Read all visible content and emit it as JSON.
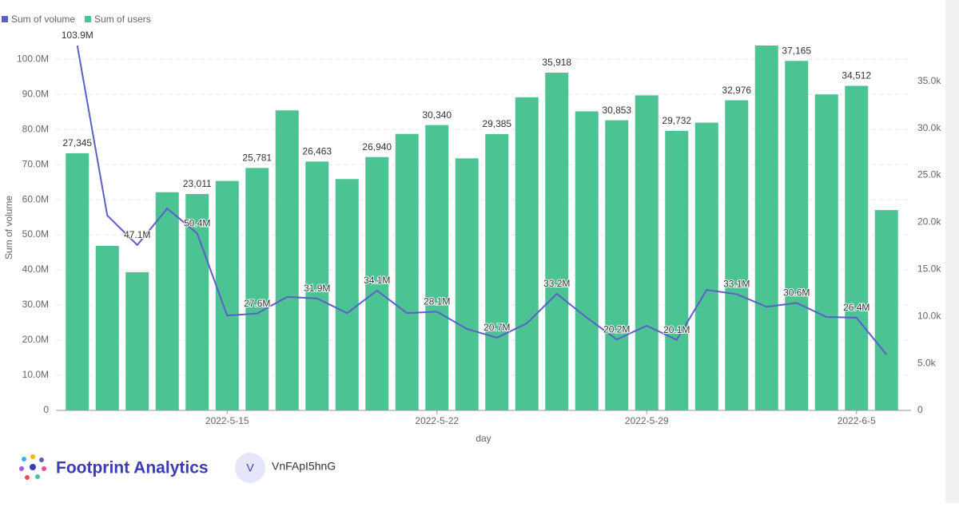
{
  "chart_data": {
    "type": "bar",
    "categories": [
      null,
      null,
      null,
      null,
      null,
      "2022-5-15",
      null,
      null,
      null,
      null,
      null,
      null,
      "2022-5-22",
      null,
      null,
      null,
      null,
      null,
      null,
      "2022-5-29",
      null,
      null,
      null,
      null,
      null,
      null,
      "2022-6-5",
      null
    ],
    "x_label": "day",
    "y_label": "Sum of volume",
    "ylim": [
      0,
      103900000
    ],
    "yticks": [
      0,
      {
        "value": 10000000,
        "label": "10.0M"
      },
      {
        "value": 20000000,
        "label": "20.0M"
      },
      {
        "value": 30000000,
        "label": "30.0M"
      },
      {
        "value": 40000000,
        "label": "40.0M"
      },
      {
        "value": 50000000,
        "label": "50.0M"
      },
      {
        "value": 60000000,
        "label": "60.0M"
      },
      {
        "value": 70000000,
        "label": "70.0M"
      },
      {
        "value": 80000000,
        "label": "80.0M"
      },
      {
        "value": 90000000,
        "label": "90.0M"
      },
      {
        "value": 100000000,
        "label": "100.0M"
      }
    ],
    "y2lim": [
      0,
      38800
    ],
    "y2ticks": [
      0,
      {
        "value": 5000,
        "label": "5.0k"
      },
      {
        "value": 10000,
        "label": "10.0k"
      },
      {
        "value": 15000,
        "label": "15.0k"
      },
      {
        "value": 20000,
        "label": "20.0k"
      },
      {
        "value": 25000,
        "label": "25.0k"
      },
      {
        "value": 30000,
        "label": "30.0k"
      },
      {
        "value": 35000,
        "label": "35.0k"
      }
    ],
    "grid": true,
    "legend": "top-left",
    "watermark": "Footprint Analytics",
    "series": [
      {
        "name": "Sum of volume",
        "type": "line",
        "color": "#5b5fc7",
        "values": [
          103900000,
          55500000,
          47100000,
          57500000,
          50400000,
          27000000,
          27600000,
          32300000,
          31900000,
          27700000,
          34100000,
          27700000,
          28100000,
          23200000,
          20700000,
          24800000,
          33200000,
          26400000,
          20200000,
          24100000,
          20100000,
          34300000,
          33100000,
          29500000,
          30600000,
          26600000,
          26400000,
          15900000
        ],
        "value_labels": [
          "103.9M",
          null,
          "47.1M",
          null,
          "50.4M",
          null,
          "27.6M",
          null,
          "31.9M",
          null,
          "34.1M",
          null,
          "28.1M",
          null,
          "20.7M",
          null,
          "33.2M",
          null,
          "20.2M",
          null,
          "20.1M",
          null,
          "33.1M",
          null,
          "30.6M",
          null,
          "26.4M",
          null
        ]
      },
      {
        "name": "Sum of users",
        "type": "bar",
        "axis": "y2",
        "color": "#4cc392",
        "values": [
          27345,
          17500,
          14700,
          23200,
          23011,
          24400,
          25781,
          31900,
          26463,
          24600,
          26940,
          29400,
          30340,
          26800,
          29385,
          33300,
          35918,
          31800,
          30853,
          33500,
          29732,
          30600,
          32976,
          38800,
          37165,
          33600,
          34512,
          21300
        ],
        "value_labels": [
          "27,345",
          null,
          null,
          null,
          "23,011",
          null,
          "25,781",
          null,
          "26,463",
          null,
          "26,940",
          null,
          "30,340",
          null,
          "29,385",
          null,
          "35,918",
          null,
          "30,853",
          null,
          "29,732",
          null,
          "32,976",
          null,
          "37,165",
          null,
          "34,512",
          null
        ]
      }
    ]
  },
  "footer": {
    "brand": "Footprint Analytics",
    "avatar": "V",
    "user": "VnFApI5hnG"
  }
}
